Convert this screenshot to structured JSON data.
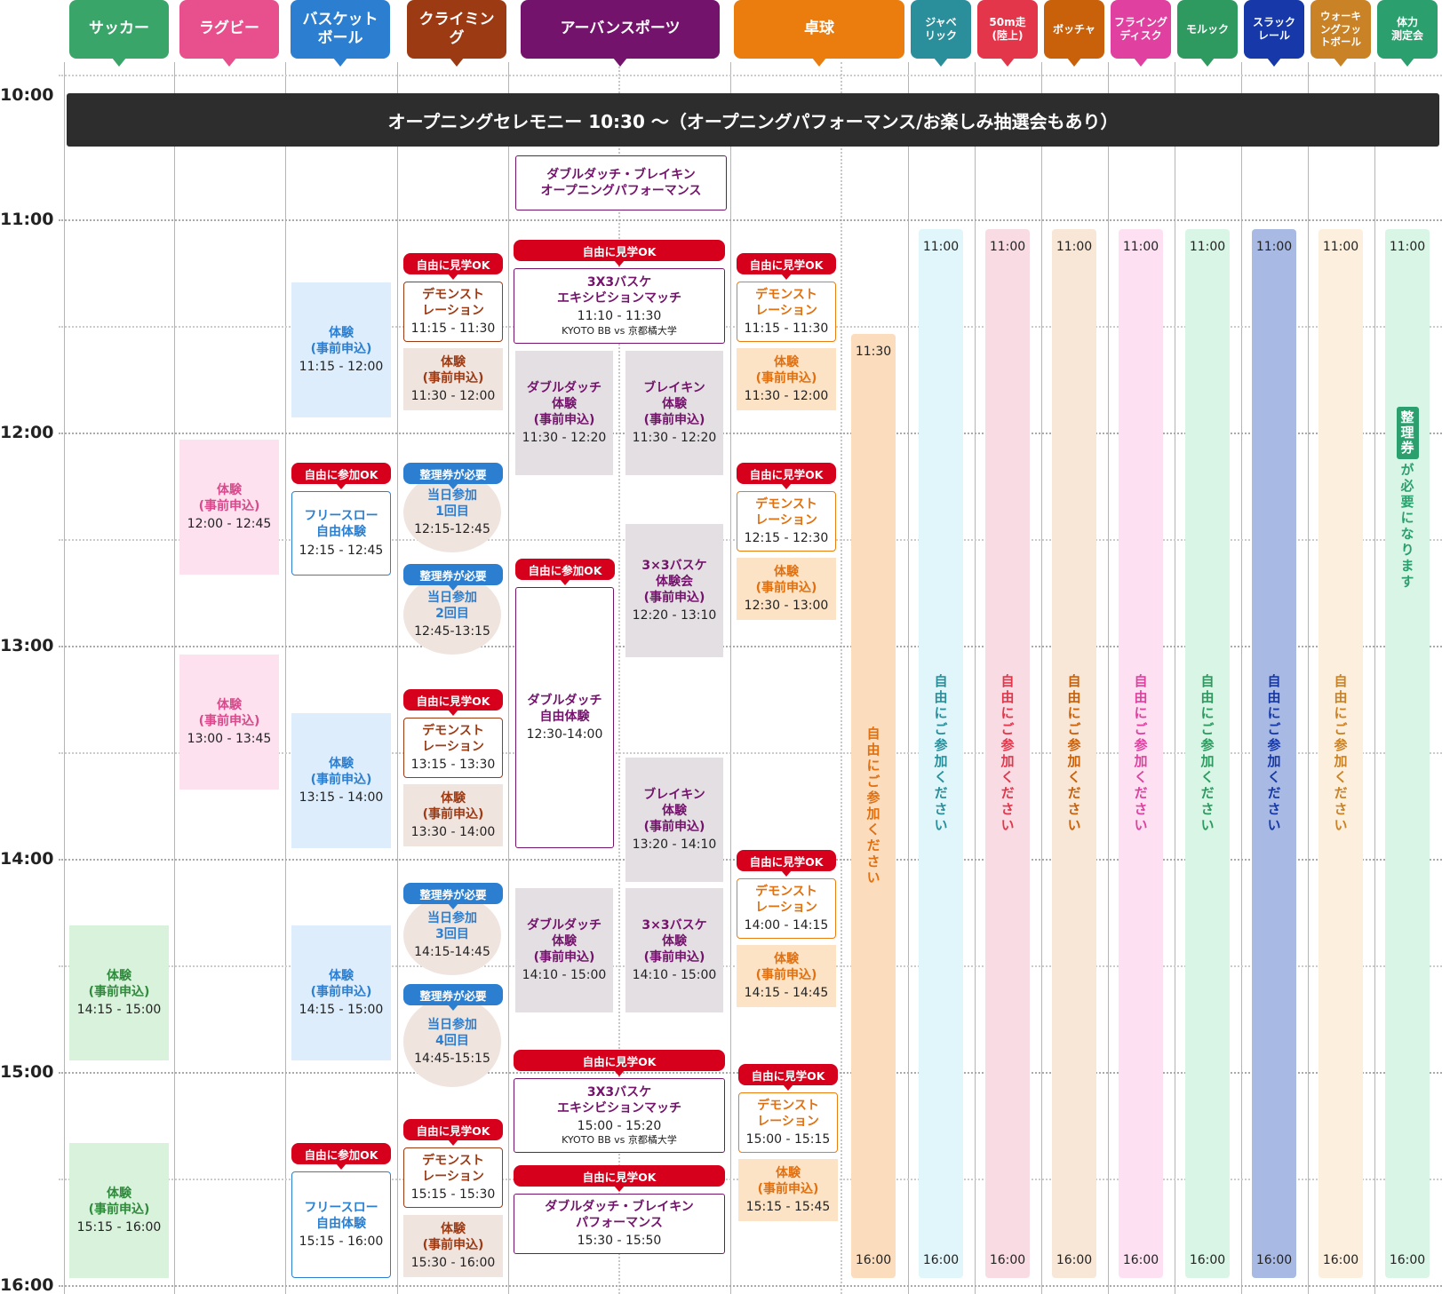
{
  "headers": [
    {
      "label": "サッカー",
      "color": "#3aa569"
    },
    {
      "label": "ラグビー",
      "color": "#e8508d"
    },
    {
      "label": "バスケット\nボール",
      "color": "#2c7fd0"
    },
    {
      "label": "クライミン\nグ",
      "color": "#9c3a14"
    },
    {
      "label": "アーバンスポーツ",
      "color": "#73136b"
    },
    {
      "label": "卓球",
      "color": "#eb7c0e"
    },
    {
      "label": "ジャベ\nリック",
      "color": "#2a8f9b"
    },
    {
      "label": "50m走\n(陸上)",
      "color": "#e3364b"
    },
    {
      "label": "ボッチャ",
      "color": "#c8610a"
    },
    {
      "label": "フライング\nディスク",
      "color": "#e040a0"
    },
    {
      "label": "モルック",
      "color": "#2e9a60"
    },
    {
      "label": "スラック\nレール",
      "color": "#1638a8"
    },
    {
      "label": "ウォーキ\nングフッ\nトボール",
      "color": "#c98226"
    },
    {
      "label": "体力\n測定会",
      "color": "#2ba06e"
    }
  ],
  "times": [
    "10:00",
    "11:00",
    "12:00",
    "13:00",
    "14:00",
    "15:00",
    "16:00"
  ],
  "ceremony": "オープニングセレモニー 10:30 〜（オープニングパフォーマンス/お楽しみ抽選会もあり）",
  "tags": {
    "watch": "自由に見学OK",
    "join": "自由に参加OK",
    "ticket": "整理券が必要"
  },
  "soccer": [
    {
      "title": "体験\n(事前申込)",
      "time": "14:15 - 15:00"
    },
    {
      "title": "体験\n(事前申込)",
      "time": "15:15 - 16:00"
    }
  ],
  "rugby": [
    {
      "title": "体験\n(事前申込)",
      "time": "12:00 - 12:45"
    },
    {
      "title": "体験\n(事前申込)",
      "time": "13:00 - 13:45"
    }
  ],
  "basketball": [
    {
      "title": "体験\n(事前申込)",
      "time": "11:15 - 12:00"
    },
    {
      "title": "フリースロー\n自由体験",
      "time": "12:15 - 12:45"
    },
    {
      "title": "体験\n(事前申込)",
      "time": "13:15 - 14:00"
    },
    {
      "title": "体験\n(事前申込)",
      "time": "14:15 - 15:00"
    },
    {
      "title": "フリースロー\n自由体験",
      "time": "15:15 - 16:00"
    }
  ],
  "climbing": [
    {
      "title": "デモンスト\nレーション",
      "time": "11:15 - 11:30"
    },
    {
      "title": "体験\n(事前申込)",
      "time": "11:30 - 12:00"
    },
    {
      "title": "当日参加\n1回目",
      "time": "12:15-12:45"
    },
    {
      "title": "当日参加\n2回目",
      "time": "12:45-13:15"
    },
    {
      "title": "デモンスト\nレーション",
      "time": "13:15 - 13:30"
    },
    {
      "title": "体験\n(事前申込)",
      "time": "13:30 - 14:00"
    },
    {
      "title": "当日参加\n3回目",
      "time": "14:15-14:45"
    },
    {
      "title": "当日参加\n4回目",
      "time": "14:45-15:15"
    },
    {
      "title": "デモンスト\nレーション",
      "time": "15:15 - 15:30"
    },
    {
      "title": "体験\n(事前申込)",
      "time": "15:30 - 16:00"
    }
  ],
  "urban": {
    "opening_perf": "ダブルダッチ・ブレイキン\nオープニングパフォーマンス",
    "exhibition1": {
      "title": "3X3バスケ\nエキシビションマッチ",
      "time": "11:10 - 11:30",
      "vs": "KYOTO BB vs 京都橘大学"
    },
    "dd1": {
      "title": "ダブルダッチ\n体験\n(事前申込)",
      "time": "11:30 - 12:20"
    },
    "br1": {
      "title": "ブレイキン\n体験\n(事前申込)",
      "time": "11:30 - 12:20"
    },
    "bb1": {
      "title": "3×3バスケ\n体験会\n(事前申込)",
      "time": "12:20 - 13:10"
    },
    "dd_free": {
      "title": "ダブルダッチ\n自由体験",
      "time": "12:30-14:00"
    },
    "br2": {
      "title": "ブレイキン\n体験\n(事前申込)",
      "time": "13:20 - 14:10"
    },
    "dd2": {
      "title": "ダブルダッチ\n体験\n(事前申込)",
      "time": "14:10 - 15:00"
    },
    "bb2": {
      "title": "3×3バスケ\n体験\n(事前申込)",
      "time": "14:10 - 15:00"
    },
    "exhibition2": {
      "title": "3X3バスケ\nエキシビションマッチ",
      "time": "15:00 - 15:20",
      "vs": "KYOTO BB vs 京都橘大学"
    },
    "perf2": {
      "title": "ダブルダッチ・ブレイキン\nパフォーマンス",
      "time": "15:30 - 15:50"
    }
  },
  "tabletennis": [
    {
      "title": "デモンスト\nレーション",
      "time": "11:15 - 11:30"
    },
    {
      "title": "体験\n(事前申込)",
      "time": "11:30 - 12:00"
    },
    {
      "title": "デモンスト\nレーション",
      "time": "12:15 - 12:30"
    },
    {
      "title": "体験\n(事前申込)",
      "time": "12:30 - 13:00"
    },
    {
      "title": "デモンスト\nレーション",
      "time": "14:00 - 14:15"
    },
    {
      "title": "体験\n(事前申込)",
      "time": "14:15 - 14:45"
    },
    {
      "title": "デモンスト\nレーション",
      "time": "15:00 - 15:15"
    },
    {
      "title": "体験\n(事前申込)",
      "time": "15:15 - 15:45"
    }
  ],
  "tt_free": {
    "start": "11:30",
    "end": "16:00",
    "text": "自由にご参加ください"
  },
  "free_cols": [
    {
      "start": "11:00",
      "end": "16:00",
      "text": "自由にご参加ください"
    },
    {
      "start": "11:00",
      "end": "16:00",
      "text": "自由にご参加ください"
    },
    {
      "start": "11:00",
      "end": "16:00",
      "text": "自由にご参加ください"
    },
    {
      "start": "11:00",
      "end": "16:00",
      "text": "自由にご参加ください"
    },
    {
      "start": "11:00",
      "end": "16:00",
      "text": "自由にご参加ください"
    },
    {
      "start": "11:00",
      "end": "16:00",
      "text": "自由にご参加ください"
    },
    {
      "start": "11:00",
      "end": "16:00",
      "text": "自由にご参加ください"
    }
  ],
  "fitness_col": {
    "start": "11:00",
    "end": "16:00",
    "badge": "整理券",
    "text": "が必要になります"
  }
}
